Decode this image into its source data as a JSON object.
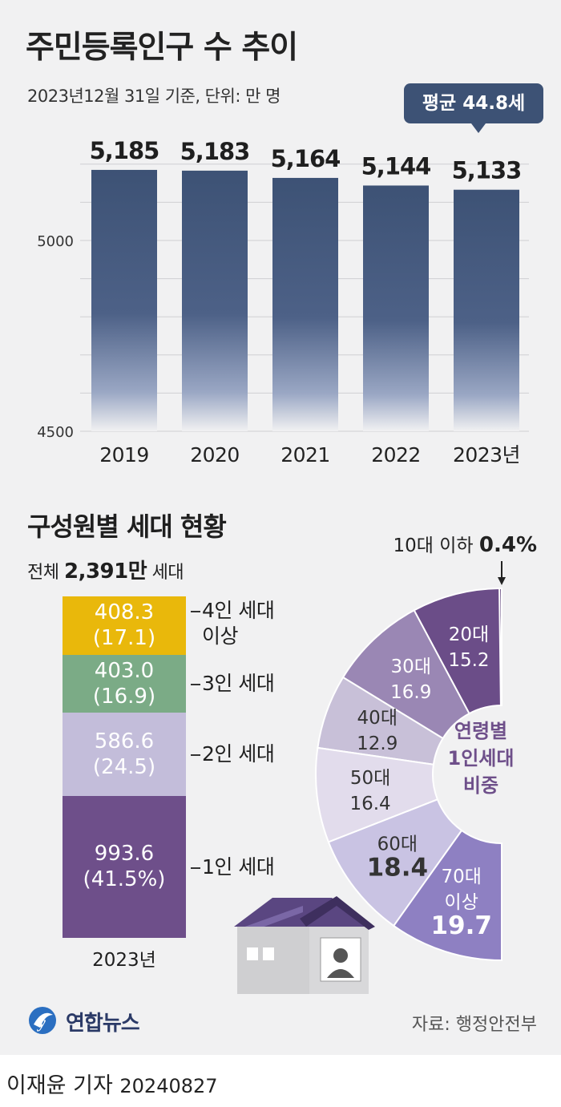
{
  "header": {
    "title": "주민등록인구 수 추이",
    "subtitle": "2023년12월 31일 기준, 단위: 만 명",
    "average_badge": "평균 44.8세"
  },
  "chart_data": [
    {
      "type": "bar",
      "title": "주민등록인구 수 추이",
      "categories": [
        "2019",
        "2020",
        "2021",
        "2022",
        "2023년"
      ],
      "values": [
        5185,
        5183,
        5164,
        5144,
        5133
      ],
      "value_labels": [
        "5,185",
        "5,183",
        "5,164",
        "5,144",
        "5,133"
      ],
      "ylim": [
        4500,
        5250
      ],
      "yticks": [
        "5000",
        "4500"
      ],
      "grid": true,
      "color": "#3d5275"
    },
    {
      "type": "bar",
      "title": "구성원별 세대 현황",
      "subtitle_prefix": "전체",
      "subtitle_value": "2,391만",
      "subtitle_suffix": "세대",
      "category": "2023년",
      "stack_order": "bottom-to-top",
      "segments": [
        {
          "name": "1인 세대",
          "value": 993.6,
          "percent_label": "(41.5%)",
          "value_label": "993.6",
          "color": "#6e4f8a"
        },
        {
          "name": "2인 세대",
          "value": 586.6,
          "percent_label": "(24.5)",
          "value_label": "586.6",
          "color": "#c3bdda"
        },
        {
          "name": "3인 세대",
          "value": 403.0,
          "percent_label": "(16.9)",
          "value_label": "403.0",
          "color": "#7bab86"
        },
        {
          "name": "4인 세대\n이상",
          "value": 408.3,
          "percent_label": "(17.1)",
          "value_label": "408.3",
          "color": "#e9b80b"
        }
      ]
    },
    {
      "type": "pie",
      "title": "연령별\n1인세대\n비중",
      "top_note_prefix": "10대 이하",
      "top_note_value": "0.4%",
      "slices": [
        {
          "label": "10대 이하",
          "value": 0.4,
          "color": "#5b3f78"
        },
        {
          "label": "20대",
          "value": 15.2,
          "color": "#6b4d88"
        },
        {
          "label": "30대",
          "value": 16.9,
          "color": "#9a87b4"
        },
        {
          "label": "40대",
          "value": 12.9,
          "color": "#c8c0d8"
        },
        {
          "label": "50대",
          "value": 16.4,
          "color": "#e2dcec"
        },
        {
          "label": "60대",
          "value": 18.4,
          "color": "#c9c3e3"
        },
        {
          "label": "70대\n이상",
          "value": 19.7,
          "color": "#8e80c2"
        }
      ]
    }
  ],
  "footer": {
    "logo_text": "연합뉴스",
    "source": "자료: 행정안전부",
    "reporter": "이재윤 기자",
    "date": "20240827"
  }
}
